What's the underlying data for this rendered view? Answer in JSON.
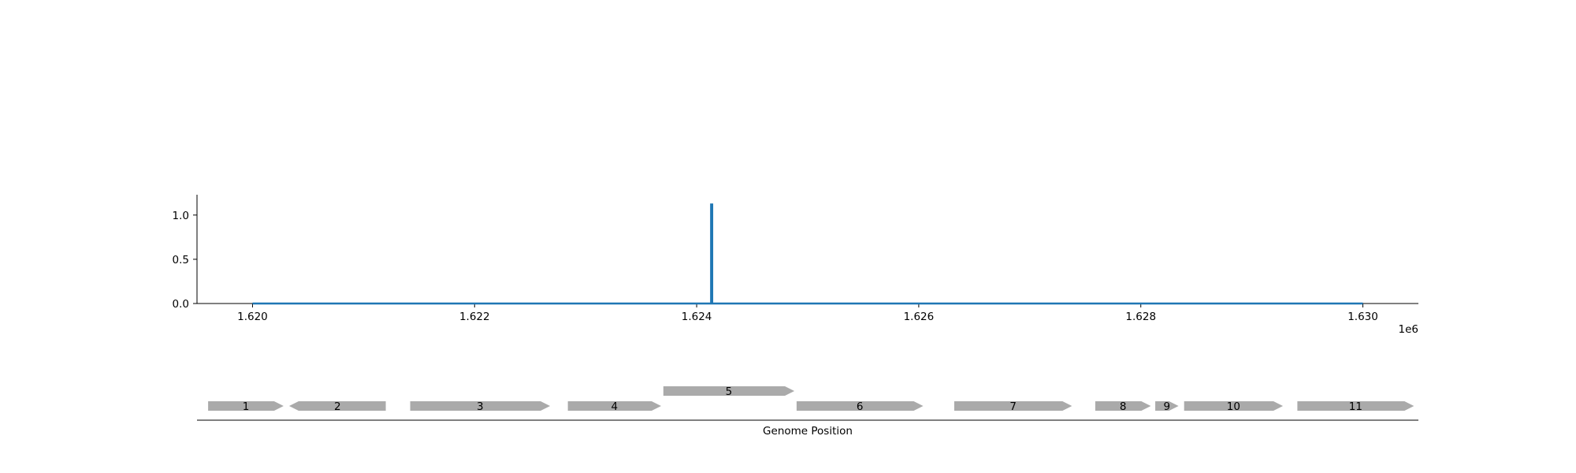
{
  "chart_data": [
    {
      "type": "line",
      "title": "",
      "xlabel": "",
      "ylabel": "",
      "x_offset_label": "1e6",
      "xlim": [
        1619500,
        1630500
      ],
      "ylim": [
        0,
        1.23
      ],
      "x_ticks": [
        1620000,
        1622000,
        1624000,
        1626000,
        1628000,
        1630000
      ],
      "x_tick_labels": [
        "1.620",
        "1.622",
        "1.624",
        "1.626",
        "1.628",
        "1.630"
      ],
      "y_ticks": [
        0.0,
        0.5,
        1.0
      ],
      "y_tick_labels": [
        "0.0",
        "0.5",
        "1.0"
      ],
      "grid": false,
      "color": "#1f77b4",
      "series": [
        {
          "x": [
            1620000,
            1624130,
            1624130,
            1624140,
            1624140,
            1630000
          ],
          "y": [
            0,
            0,
            1.12,
            1.12,
            0,
            0
          ]
        }
      ]
    },
    {
      "type": "gene-map",
      "xlabel": "Genome Position",
      "xlim": [
        1619500,
        1630500
      ],
      "color": "#aaaaaa",
      "genes": [
        {
          "label": "1",
          "start": 1619600,
          "end": 1620280,
          "strand": 1,
          "level": 0
        },
        {
          "label": "2",
          "start": 1620330,
          "end": 1621200,
          "strand": -1,
          "level": 0
        },
        {
          "label": "3",
          "start": 1621420,
          "end": 1622680,
          "strand": 1,
          "level": 0
        },
        {
          "label": "4",
          "start": 1622840,
          "end": 1623680,
          "strand": 1,
          "level": 0
        },
        {
          "label": "5",
          "start": 1623700,
          "end": 1624880,
          "strand": 1,
          "level": 1
        },
        {
          "label": "6",
          "start": 1624900,
          "end": 1626040,
          "strand": 1,
          "level": 0
        },
        {
          "label": "7",
          "start": 1626320,
          "end": 1627380,
          "strand": 1,
          "level": 0
        },
        {
          "label": "8",
          "start": 1627590,
          "end": 1628090,
          "strand": 1,
          "level": 0
        },
        {
          "label": "9",
          "start": 1628130,
          "end": 1628340,
          "strand": 1,
          "level": 0
        },
        {
          "label": "10",
          "start": 1628390,
          "end": 1629280,
          "strand": 1,
          "level": 0
        },
        {
          "label": "11",
          "start": 1629410,
          "end": 1630460,
          "strand": 1,
          "level": 0
        }
      ]
    }
  ]
}
